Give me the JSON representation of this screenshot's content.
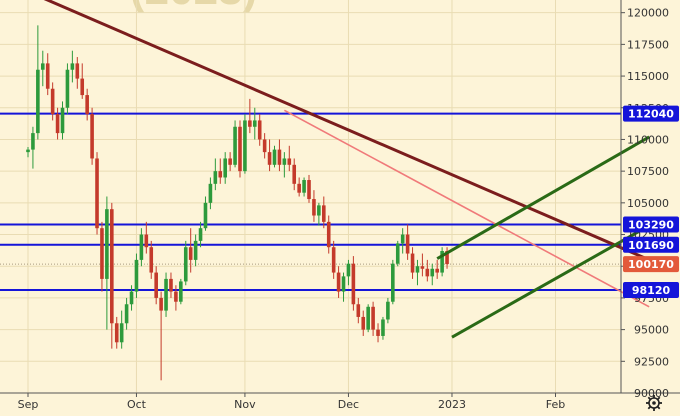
{
  "chart_data": {
    "type": "candlestick",
    "watermark": "(2023)",
    "x_axis": {
      "ticks": [
        {
          "label": "Sep",
          "bar": 0
        },
        {
          "label": "Oct",
          "bar": 22
        },
        {
          "label": "Nov",
          "bar": 44
        },
        {
          "label": "Dec",
          "bar": 65
        },
        {
          "label": "2023",
          "bar": 86
        },
        {
          "label": "Feb",
          "bar": 107
        }
      ]
    },
    "y_axis": {
      "side": "right",
      "ylim": [
        90000,
        121000
      ],
      "ticks": [
        "90000",
        "92500",
        "95000",
        "97500",
        "100000",
        "102500",
        "105000",
        "107500",
        "110000",
        "112500",
        "115000",
        "117500",
        "120000"
      ]
    },
    "levels": [
      {
        "value": 112040,
        "label": "112040",
        "color": "#1414d9",
        "kind": "horizontal"
      },
      {
        "value": 103290,
        "label": "103290",
        "color": "#1414d9",
        "kind": "horizontal"
      },
      {
        "value": 101690,
        "label": "101690",
        "color": "#1414d9",
        "kind": "horizontal"
      },
      {
        "value": 98120,
        "label": "98120",
        "color": "#1414d9",
        "kind": "horizontal"
      }
    ],
    "last_price": {
      "value": 100170,
      "label": "100170",
      "color": "#e35a3a"
    },
    "trendlines": [
      {
        "name": "resistance-dark",
        "color": "#7b1d1d",
        "points": [
          [
            -2,
            122000
          ],
          [
            126,
            100500
          ]
        ]
      },
      {
        "name": "resistance-light",
        "color": "#f07a7a",
        "points": [
          [
            52,
            112300
          ],
          [
            126,
            96800
          ]
        ]
      },
      {
        "name": "channel-upper",
        "color": "#2a6a16",
        "points": [
          [
            83,
            100600
          ],
          [
            126,
            110200
          ]
        ]
      },
      {
        "name": "channel-lower",
        "color": "#2a6a16",
        "points": [
          [
            86,
            94400
          ],
          [
            126,
            103200
          ]
        ]
      }
    ],
    "colors": {
      "up": "#2d9a3c",
      "down": "#c43a2b",
      "background": "#fdf4d8"
    },
    "candles": [
      [
        109000,
        109400,
        108600,
        109200
      ],
      [
        109200,
        111000,
        107700,
        110500
      ],
      [
        110500,
        119000,
        110000,
        115500
      ],
      [
        115500,
        117000,
        114200,
        116000
      ],
      [
        116000,
        116800,
        113500,
        114000
      ],
      [
        114000,
        114500,
        111500,
        112000
      ],
      [
        112000,
        112500,
        110000,
        110500
      ],
      [
        110500,
        113000,
        110000,
        112500
      ],
      [
        112500,
        116000,
        112000,
        115500
      ],
      [
        115500,
        117000,
        114500,
        116000
      ],
      [
        116000,
        116500,
        114000,
        114800
      ],
      [
        114800,
        116000,
        113200,
        113500
      ],
      [
        113500,
        114000,
        111500,
        112000
      ],
      [
        112000,
        112500,
        108000,
        108500
      ],
      [
        108500,
        109000,
        102500,
        103000
      ],
      [
        103000,
        103500,
        98000,
        99000
      ],
      [
        99000,
        105500,
        95000,
        104500
      ],
      [
        104500,
        105000,
        93500,
        95500
      ],
      [
        95500,
        96000,
        93500,
        94000
      ],
      [
        94000,
        96500,
        93500,
        95500
      ],
      [
        95500,
        97500,
        95000,
        97000
      ],
      [
        97000,
        98500,
        96500,
        98000
      ],
      [
        98000,
        101000,
        97500,
        100500
      ],
      [
        100500,
        103000,
        100000,
        102500
      ],
      [
        102500,
        103500,
        101000,
        101500
      ],
      [
        101500,
        102000,
        99000,
        99500
      ],
      [
        99500,
        100000,
        97000,
        97500
      ],
      [
        97500,
        98000,
        91000,
        96500
      ],
      [
        96500,
        99500,
        96000,
        99000
      ],
      [
        99000,
        99500,
        97500,
        98000
      ],
      [
        98000,
        98500,
        96500,
        97200
      ],
      [
        97200,
        99000,
        97000,
        98800
      ],
      [
        98800,
        102000,
        98500,
        101500
      ],
      [
        101500,
        103000,
        99500,
        100500
      ],
      [
        100500,
        102500,
        100000,
        102000
      ],
      [
        102000,
        103500,
        101500,
        103000
      ],
      [
        103000,
        105500,
        102800,
        105000
      ],
      [
        105000,
        107000,
        104500,
        106500
      ],
      [
        106500,
        108500,
        106000,
        107500
      ],
      [
        107500,
        108500,
        106500,
        107000
      ],
      [
        107000,
        109000,
        106500,
        108500
      ],
      [
        108500,
        109000,
        107500,
        108000
      ],
      [
        108000,
        111500,
        107800,
        111000
      ],
      [
        111000,
        111500,
        107000,
        107500
      ],
      [
        107500,
        112000,
        107300,
        111500
      ],
      [
        111500,
        113200,
        110500,
        111000
      ],
      [
        111000,
        112500,
        110000,
        111500
      ],
      [
        111500,
        112000,
        109500,
        110000
      ],
      [
        110000,
        110500,
        108500,
        109000
      ],
      [
        109000,
        110000,
        107500,
        108000
      ],
      [
        108000,
        109500,
        107800,
        109200
      ],
      [
        109200,
        110000,
        107500,
        108000
      ],
      [
        108000,
        109000,
        107000,
        108500
      ],
      [
        108500,
        109500,
        107500,
        108000
      ],
      [
        108000,
        108500,
        106000,
        106500
      ],
      [
        106500,
        107000,
        105500,
        105800
      ],
      [
        105800,
        107000,
        105500,
        106800
      ],
      [
        106800,
        107200,
        105000,
        105300
      ],
      [
        105300,
        106000,
        103500,
        104000
      ],
      [
        104000,
        105000,
        103200,
        104800
      ],
      [
        104800,
        105500,
        103000,
        103500
      ],
      [
        103500,
        104000,
        101000,
        101500
      ],
      [
        101500,
        102000,
        99000,
        99500
      ],
      [
        99500,
        100000,
        97500,
        98000
      ],
      [
        98000,
        99500,
        97200,
        99200
      ],
      [
        99200,
        100500,
        98500,
        100200
      ],
      [
        100200,
        100800,
        96500,
        97000
      ],
      [
        97000,
        97500,
        95500,
        96000
      ],
      [
        96000,
        96500,
        94500,
        95000
      ],
      [
        95000,
        97000,
        94800,
        96800
      ],
      [
        96800,
        97200,
        94500,
        95000
      ],
      [
        95000,
        95500,
        94000,
        94500
      ],
      [
        94500,
        96000,
        94200,
        95800
      ],
      [
        95800,
        97500,
        95500,
        97200
      ],
      [
        97200,
        100500,
        97000,
        100200
      ],
      [
        100200,
        102000,
        100000,
        101800
      ],
      [
        101800,
        103000,
        101000,
        102500
      ],
      [
        102500,
        103300,
        100500,
        101000
      ],
      [
        101000,
        101500,
        99000,
        99500
      ],
      [
        99500,
        100500,
        98500,
        100000
      ],
      [
        100000,
        101000,
        99200,
        99800
      ],
      [
        99800,
        100500,
        98800,
        99200
      ],
      [
        99200,
        100200,
        98500,
        99800
      ],
      [
        99800,
        100500,
        99000,
        99500
      ],
      [
        99500,
        101500,
        99200,
        101200
      ],
      [
        101200,
        101500,
        99800,
        100170
      ]
    ]
  }
}
